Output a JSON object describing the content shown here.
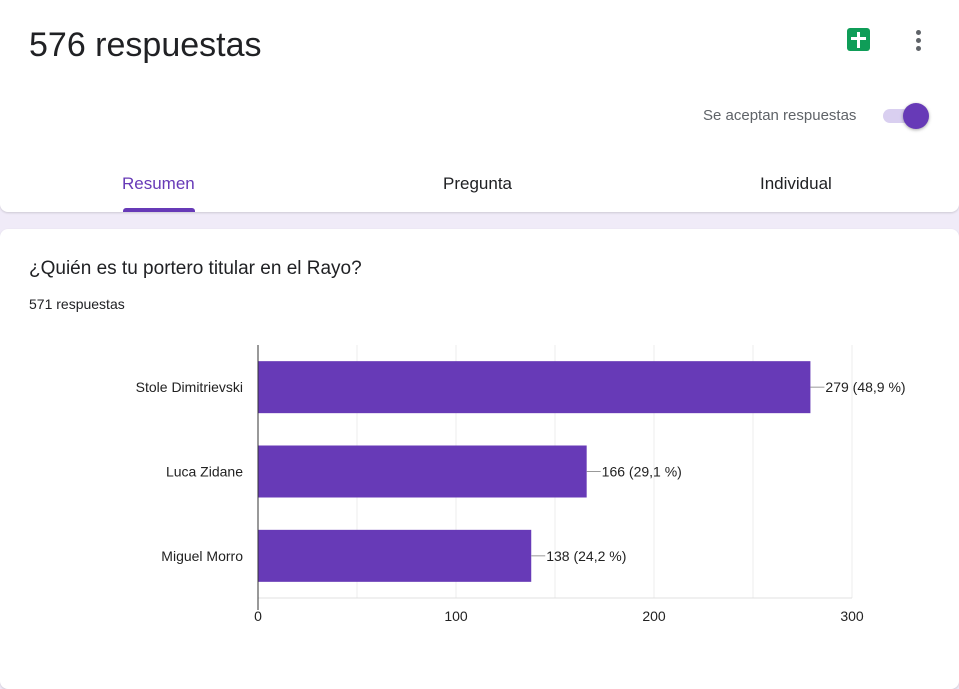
{
  "header": {
    "title": "576 respuestas",
    "accepting_label": "Se aceptan respuestas",
    "accepting": true,
    "sheets_icon": "google-sheets-icon",
    "more_icon": "more-vert-icon"
  },
  "tabs": [
    {
      "label": "Resumen",
      "active": true
    },
    {
      "label": "Pregunta",
      "active": false
    },
    {
      "label": "Individual",
      "active": false
    }
  ],
  "question": {
    "title": "¿Quién es tu portero titular en el Rayo?",
    "responses": "571 respuestas"
  },
  "colors": {
    "accent": "#673ab7",
    "bar": "#673ab7"
  },
  "chart_data": {
    "type": "bar",
    "orientation": "horizontal",
    "categories": [
      "Stole Dimitrievski",
      "Luca Zidane",
      "Miguel Morro"
    ],
    "values": [
      279,
      166,
      138
    ],
    "labels": [
      "279 (48,9 %)",
      "166 (29,1 %)",
      "138 (24,2 %)"
    ],
    "xlim": [
      0,
      300
    ],
    "xticks": [
      "0",
      "100",
      "200",
      "300"
    ],
    "grid": true
  }
}
